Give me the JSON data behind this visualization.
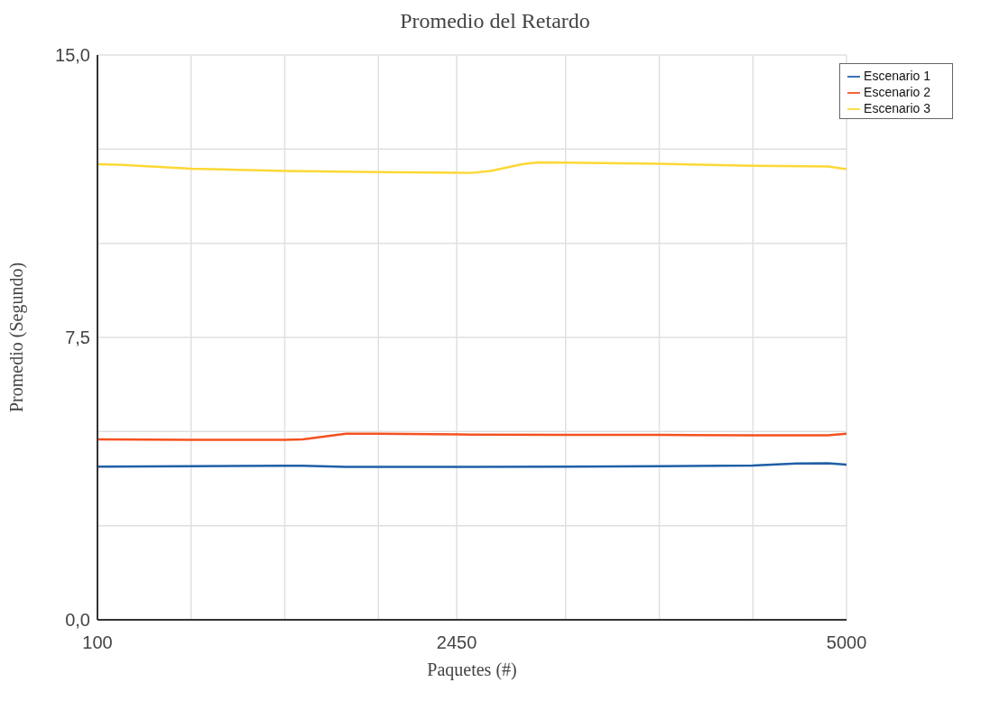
{
  "chart_data": {
    "type": "line",
    "title": "Promedio del Retardo",
    "xlabel": "Paquetes (#)",
    "ylabel": "Promedio (Segundo)",
    "xlim": [
      100,
      5000
    ],
    "xticks": [
      100,
      {
        "value": 712.5,
        "label": null
      },
      {
        "value": 1325,
        "label": null
      },
      {
        "value": 1937.5,
        "label": null
      },
      2450,
      {
        "value": 3162.5,
        "label": null
      },
      {
        "value": 3775,
        "label": null
      },
      {
        "value": 4387.5,
        "label": null
      },
      5000
    ],
    "ylim": [
      0,
      15
    ],
    "yticks": [
      {
        "value": 0,
        "label": "0,0"
      },
      {
        "value": 2.5,
        "label": null
      },
      {
        "value": 5,
        "label": null
      },
      {
        "value": 7.5,
        "label": "7,5"
      },
      {
        "value": 10,
        "label": null
      },
      {
        "value": 12.5,
        "label": null
      },
      {
        "value": 15,
        "label": "15,0"
      }
    ],
    "grid": true,
    "legend": "top right",
    "marker": "none",
    "line_style": "solid",
    "series": [
      {
        "name": "Escenario 1",
        "color": "#1f5fa6",
        "x": [
          100,
          715,
          1325,
          1443,
          1725,
          1940,
          2550,
          3165,
          3775,
          4385,
          4672,
          4877,
          5000
        ],
        "values": [
          4.07,
          4.08,
          4.09,
          4.09,
          4.06,
          4.06,
          4.06,
          4.07,
          4.08,
          4.1,
          4.15,
          4.16,
          4.12
        ]
      },
      {
        "name": "Escenario 2",
        "color": "#f4511e",
        "x": [
          100,
          715,
          1325,
          1443,
          1725,
          1940,
          2550,
          3165,
          3775,
          4385,
          4877,
          5000
        ],
        "values": [
          4.79,
          4.78,
          4.78,
          4.79,
          4.94,
          4.94,
          4.92,
          4.91,
          4.91,
          4.9,
          4.9,
          4.94
        ]
      },
      {
        "name": "Escenario 3",
        "color": "#fdd835",
        "x": [
          100,
          264,
          715,
          1325,
          1940,
          2550,
          2673,
          2878,
          2981,
          3165,
          3775,
          4385,
          4877,
          5000
        ],
        "values": [
          12.1,
          12.08,
          11.98,
          11.92,
          11.89,
          11.87,
          11.92,
          12.1,
          12.15,
          12.14,
          12.11,
          12.06,
          12.04,
          11.97
        ]
      }
    ]
  }
}
